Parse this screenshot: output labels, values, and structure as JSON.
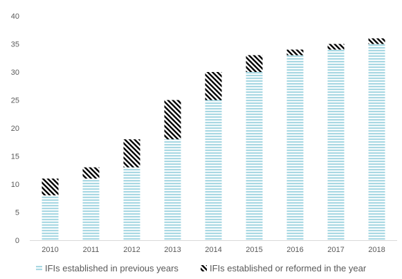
{
  "chart_data": {
    "type": "bar",
    "stacked": true,
    "categories": [
      "2010",
      "2011",
      "2012",
      "2013",
      "2014",
      "2015",
      "2016",
      "2017",
      "2018"
    ],
    "series": [
      {
        "name": "IFIs established in previous years",
        "values": [
          8,
          11,
          13,
          18,
          25,
          30,
          33,
          34,
          35
        ],
        "color": "#a8d8e3",
        "pattern": "horizontal-lines"
      },
      {
        "name": "IFIs established or reformed in the year",
        "values": [
          3,
          2,
          5,
          7,
          5,
          3,
          1,
          1,
          1
        ],
        "color": "#000000",
        "pattern": "diagonal-hatch"
      }
    ],
    "ylim": [
      0,
      40
    ],
    "yticks": [
      0,
      5,
      10,
      15,
      20,
      25,
      30,
      35,
      40
    ],
    "grid": false,
    "legend_position": "bottom",
    "title": "",
    "xlabel": "",
    "ylabel": ""
  }
}
